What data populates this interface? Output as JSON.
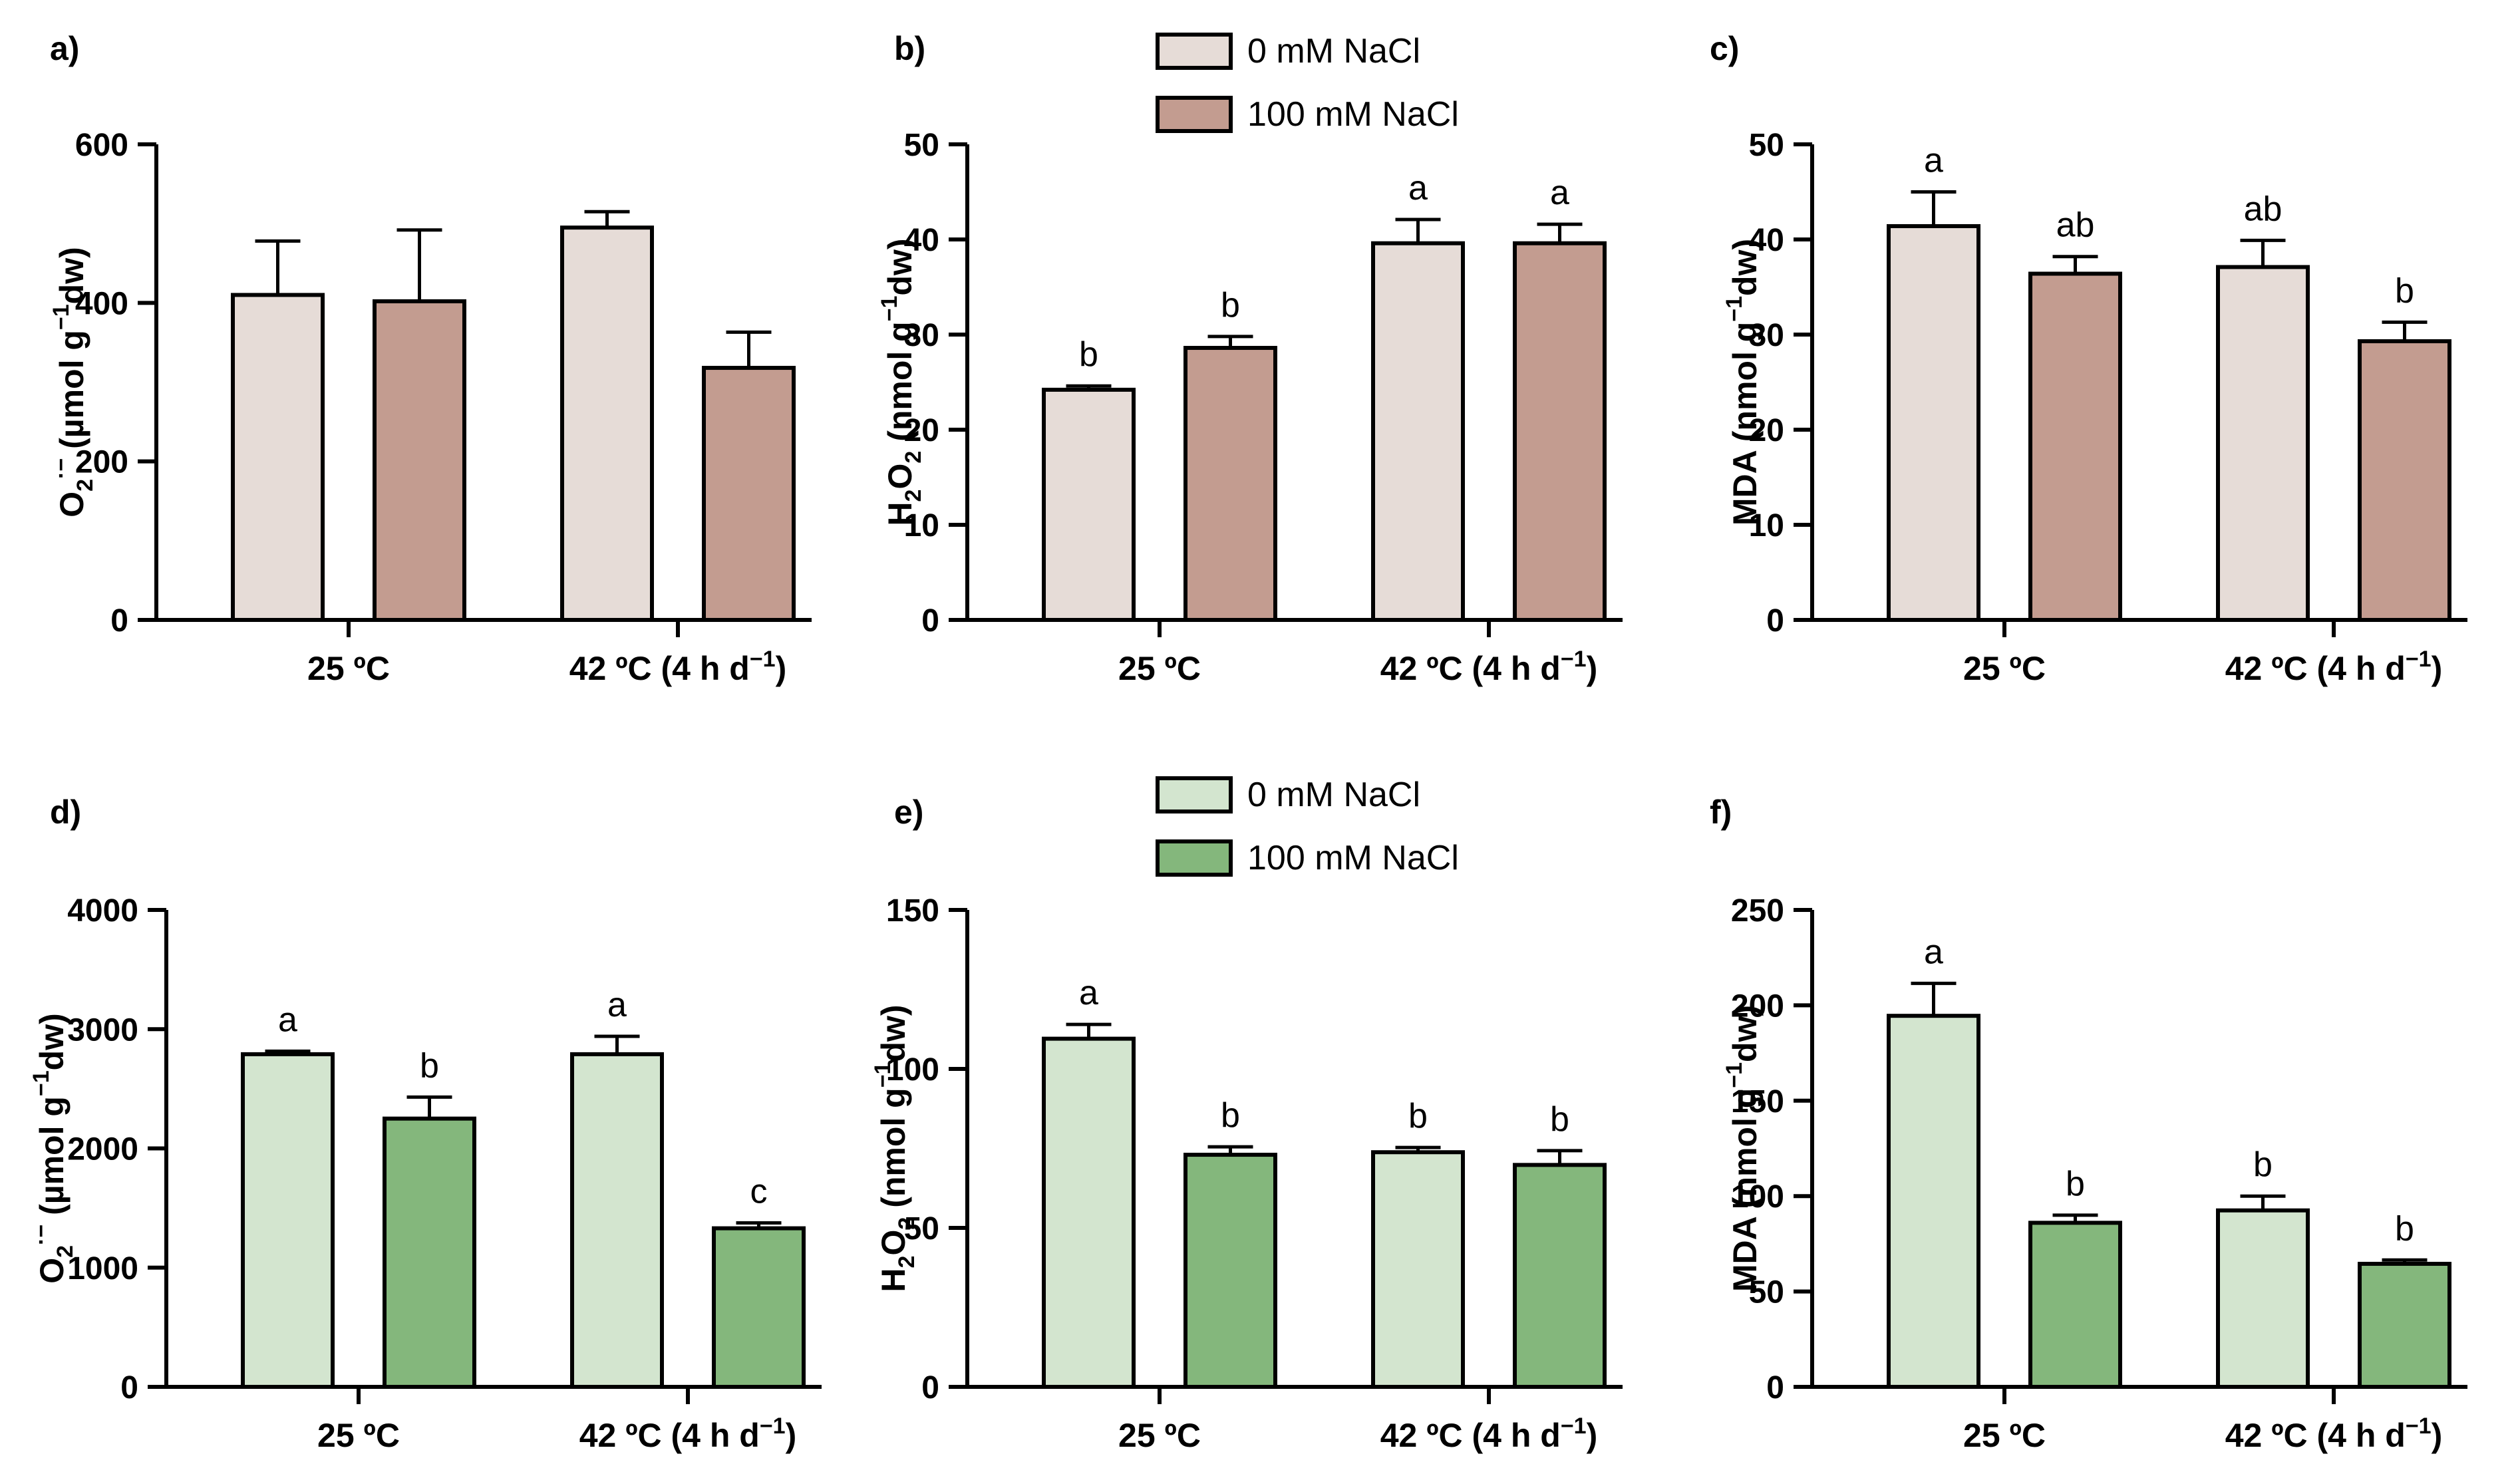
{
  "colors": {
    "pink_light": "#e6dcd7",
    "pink_dark": "#c39c90",
    "green_light": "#d3e5cf",
    "green_dark": "#84b77c"
  },
  "legends": [
    {
      "items": [
        {
          "label": "0 mM NaCl",
          "color": "#e6dcd7"
        },
        {
          "label": "100 mM NaCl",
          "color": "#c39c90"
        }
      ]
    },
    {
      "items": [
        {
          "label": "0 mM NaCl",
          "color": "#d3e5cf"
        },
        {
          "label": "100 mM NaCl",
          "color": "#84b77c"
        }
      ]
    }
  ],
  "chart_data": [
    {
      "panel": "a)",
      "type": "bar",
      "ylabel": {
        "main": "O",
        "sub": "2",
        "sup": "·−",
        "mid": " (µmol g",
        "sup2": "−1",
        "end": "dw)"
      },
      "ylim": [
        0,
        600
      ],
      "yticks": [
        0,
        200,
        400,
        600
      ],
      "categories": [
        "25 ºC",
        "42 ºC (4 h d−1)"
      ],
      "colors": [
        "#e6dcd7",
        "#c39c90"
      ],
      "series": [
        {
          "name": "0 mM NaCl",
          "values": [
            410,
            495
          ],
          "errors": [
            68,
            20
          ],
          "letters": [
            "",
            ""
          ]
        },
        {
          "name": "100 mM NaCl",
          "values": [
            402,
            318
          ],
          "errors": [
            90,
            45
          ],
          "letters": [
            "",
            ""
          ]
        }
      ]
    },
    {
      "panel": "b)",
      "type": "bar",
      "ylabel": {
        "main": "H",
        "sub": "2",
        "sup": "",
        "mid": "O",
        "sub2": "2",
        "end": " (nmol g",
        "sup2": "−1",
        "tail": "dw)"
      },
      "ylim": [
        0,
        50
      ],
      "yticks": [
        0,
        10,
        20,
        30,
        40,
        50
      ],
      "categories": [
        "25 ºC",
        "42 ºC (4 h d−1)"
      ],
      "colors": [
        "#e6dcd7",
        "#c39c90"
      ],
      "series": [
        {
          "name": "0 mM NaCl",
          "values": [
            24.2,
            39.6
          ],
          "errors": [
            0.4,
            2.5
          ],
          "letters": [
            "b",
            "a"
          ]
        },
        {
          "name": "100 mM NaCl",
          "values": [
            28.6,
            39.6
          ],
          "errors": [
            1.2,
            2.0
          ],
          "letters": [
            "b",
            "a"
          ]
        }
      ]
    },
    {
      "panel": "c)",
      "type": "bar",
      "ylabel": {
        "main": "MDA (nmol g",
        "sup2": "−1",
        "end": "dw)"
      },
      "ylim": [
        0,
        50
      ],
      "yticks": [
        0,
        10,
        20,
        30,
        40,
        50
      ],
      "categories": [
        "25 ºC",
        "42 ºC (4 h d−1)"
      ],
      "colors": [
        "#e6dcd7",
        "#c39c90"
      ],
      "series": [
        {
          "name": "0 mM NaCl",
          "values": [
            41.4,
            37.1
          ],
          "errors": [
            3.6,
            2.8
          ],
          "letters": [
            "a",
            "ab"
          ]
        },
        {
          "name": "100 mM NaCl",
          "values": [
            36.4,
            29.3
          ],
          "errors": [
            1.8,
            2.0
          ],
          "letters": [
            "ab",
            "b"
          ]
        }
      ]
    },
    {
      "panel": "d)",
      "type": "bar",
      "ylabel": {
        "main": "O",
        "sub": "2",
        "sup": "·−",
        "mid": " (µmol g",
        "sup2": "−1",
        "end": "dw)"
      },
      "ylim": [
        0,
        4000
      ],
      "yticks": [
        0,
        1000,
        2000,
        3000,
        4000
      ],
      "categories": [
        "25 ºC",
        "42 ºC (4 h d−1)"
      ],
      "colors": [
        "#d3e5cf",
        "#84b77c"
      ],
      "series": [
        {
          "name": "0 mM NaCl",
          "values": [
            2790,
            2790
          ],
          "errors": [
            25,
            150
          ],
          "letters": [
            "a",
            "a"
          ]
        },
        {
          "name": "100 mM NaCl",
          "values": [
            2250,
            1330
          ],
          "errors": [
            180,
            45
          ],
          "letters": [
            "b",
            "c"
          ]
        }
      ]
    },
    {
      "panel": "e)",
      "type": "bar",
      "ylabel": {
        "main": "H",
        "sub": "2",
        "sup": "",
        "mid": "O",
        "sub2": "2",
        "end": " (nmol g",
        "sup2": "−1",
        "tail": "dw)"
      },
      "ylim": [
        0,
        150
      ],
      "yticks": [
        0,
        50,
        100,
        150
      ],
      "categories": [
        "25 ºC",
        "42 ºC (4 h d−1)"
      ],
      "colors": [
        "#d3e5cf",
        "#84b77c"
      ],
      "series": [
        {
          "name": "0 mM NaCl",
          "values": [
            109.5,
            73.8
          ],
          "errors": [
            4.5,
            1.5
          ],
          "letters": [
            "a",
            "b"
          ]
        },
        {
          "name": "100 mM NaCl",
          "values": [
            73.0,
            69.8
          ],
          "errors": [
            2.5,
            4.5
          ],
          "letters": [
            "b",
            "b"
          ]
        }
      ]
    },
    {
      "panel": "f)",
      "type": "bar",
      "ylabel": {
        "main": "MDA (nmol g",
        "sup2": "−1",
        "end": "dw)"
      },
      "ylim": [
        0,
        250
      ],
      "yticks": [
        0,
        50,
        100,
        150,
        200,
        250
      ],
      "categories": [
        "25 ºC",
        "42 ºC (4 h d−1)"
      ],
      "colors": [
        "#d3e5cf",
        "#84b77c"
      ],
      "series": [
        {
          "name": "0 mM NaCl",
          "values": [
            194.5,
            92.5
          ],
          "errors": [
            17,
            7.5
          ],
          "letters": [
            "a",
            "b"
          ]
        },
        {
          "name": "100 mM NaCl",
          "values": [
            86.0,
            64.5
          ],
          "errors": [
            4,
            2
          ],
          "letters": [
            "b",
            "b"
          ]
        }
      ]
    }
  ]
}
